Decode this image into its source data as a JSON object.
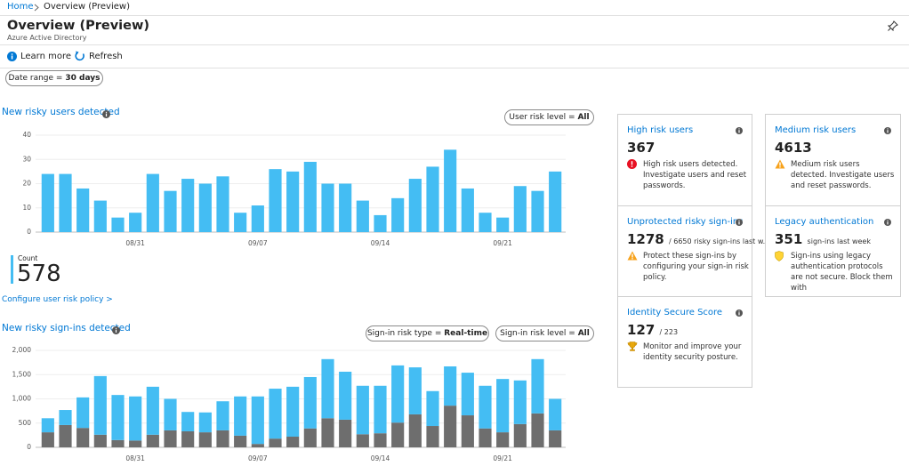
{
  "breadcrumb": {
    "home": "Home",
    "current": "Overview (Preview)"
  },
  "header": {
    "title": "Overview (Preview)",
    "subtitle": "Azure Active Directory"
  },
  "toolbar": {
    "learn_more": "Learn more",
    "refresh": "Refresh"
  },
  "date_range": {
    "label": "Date range =",
    "value": "30 days"
  },
  "chart_data": [
    {
      "type": "bar",
      "title": "New risky users detected",
      "filters": [
        {
          "label": "User risk level =",
          "value": "All"
        }
      ],
      "categories": [
        null,
        null,
        null,
        null,
        null,
        "08/31",
        null,
        null,
        null,
        null,
        null,
        null,
        "09/07",
        null,
        null,
        null,
        null,
        null,
        null,
        "09/14",
        null,
        null,
        null,
        null,
        null,
        null,
        "09/21",
        null,
        null,
        null
      ],
      "values": [
        24,
        24,
        18,
        13,
        6,
        8,
        24,
        17,
        22,
        20,
        23,
        8,
        11,
        26,
        25,
        29,
        20,
        20,
        13,
        7,
        14,
        22,
        27,
        34,
        18,
        8,
        6,
        19,
        17,
        25
      ],
      "color": "#44bdf3",
      "ylim": [
        0,
        40
      ],
      "yticks": [
        0,
        10,
        20,
        30,
        40
      ],
      "grid": true
    },
    {
      "type": "stacked_bar",
      "title": "New risky sign-ins detected",
      "filters": [
        {
          "label": "Sign-in risk type =",
          "value": "Real-time"
        },
        {
          "label": "Sign-in risk level =",
          "value": "All"
        }
      ],
      "categories": [
        null,
        null,
        null,
        null,
        null,
        "08/31",
        null,
        null,
        null,
        null,
        null,
        null,
        "09/07",
        null,
        null,
        null,
        null,
        null,
        null,
        "09/14",
        null,
        null,
        null,
        null,
        null,
        null,
        "09/21",
        null,
        null,
        null
      ],
      "series": [
        {
          "color": "#6e6e6e",
          "values": [
            310,
            460,
            400,
            260,
            150,
            140,
            260,
            350,
            330,
            310,
            350,
            240,
            70,
            180,
            220,
            390,
            600,
            570,
            270,
            290,
            510,
            680,
            440,
            860,
            660,
            390,
            310,
            480,
            700,
            350
          ]
        },
        {
          "color": "#44bdf3",
          "values": [
            290,
            310,
            630,
            1210,
            930,
            910,
            990,
            650,
            400,
            410,
            600,
            810,
            980,
            1030,
            1030,
            1060,
            1220,
            990,
            1000,
            980,
            1180,
            970,
            720,
            810,
            880,
            880,
            1100,
            900,
            1120,
            650
          ]
        }
      ],
      "ylim": [
        0,
        2000
      ],
      "yticks": [
        0,
        500,
        {
          "value": 1000,
          "label": "1,000"
        },
        {
          "value": 1500,
          "label": "1,500"
        },
        {
          "value": 2000,
          "label": "2,000"
        }
      ],
      "grid": true
    }
  ],
  "users_count": {
    "label": "Count",
    "value": 578
  },
  "policy_link": "Configure user risk policy >",
  "cards": [
    {
      "title": "High risk users",
      "value": 367,
      "message": "High risk users detected. Investigate users and reset passwords."
    },
    {
      "title": "Medium risk users",
      "value": 4613,
      "message": "Medium risk users detected. Investigate users and reset passwords."
    },
    {
      "title": "Unprotected risky sign-ins",
      "value": 1278,
      "detail": "/ 6650 risky sign-ins last w...",
      "message": "Protect these sign-ins by configuring your sign-in risk policy."
    },
    {
      "title": "Legacy authentication",
      "value": 351,
      "detail": "sign-ins last week",
      "message": "Sign-ins using legacy authentication protocols are not secure. Block them with"
    },
    {
      "title": "Identity Secure Score",
      "value": 127,
      "detail": "/ 223",
      "message": "Monitor and improve your identity security posture."
    }
  ]
}
